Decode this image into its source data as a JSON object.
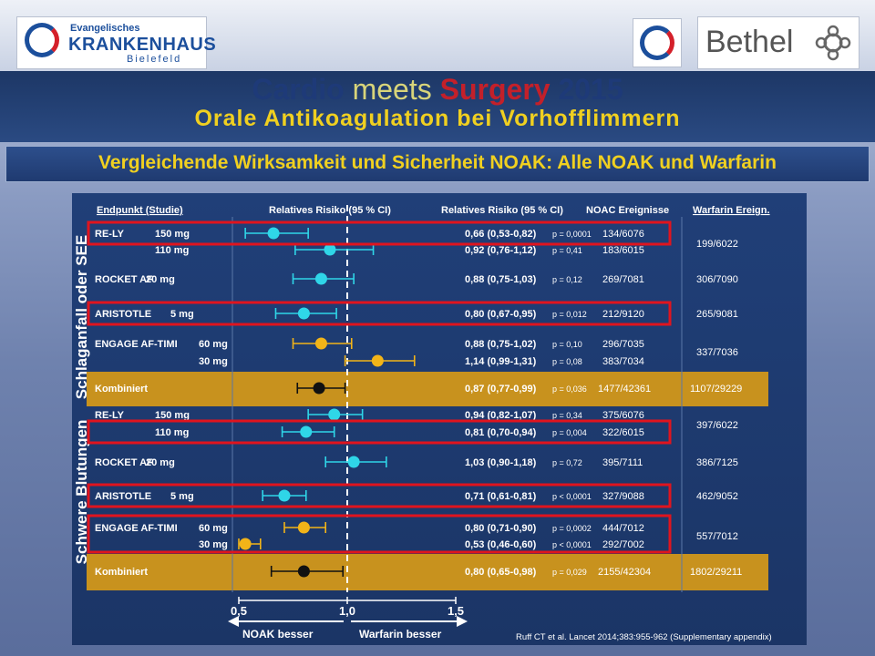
{
  "logos": {
    "left_line1": "Evangelisches",
    "left_line2": "KRANKENHAUS",
    "left_line3": "Bielefeld",
    "right_text": "Bethel"
  },
  "titles": {
    "cardio": "Cardio",
    "meets": "meets",
    "surgery": "Surgery",
    "year": "2015",
    "subtitle": "Orale Antikoagulation  bei Vorhofflimmern",
    "slide_title": "Vergleichende Wirksamkeit und Sicherheit NOAK: Alle NOAK und Warfarin"
  },
  "colors": {
    "panel": "#1f3c72",
    "orange_band": "#c8921e",
    "cyan": "#2fd6e8",
    "orange": "#f2b418",
    "highlight": "#e0141e"
  },
  "chart_data": {
    "type": "forest",
    "headers": {
      "endpoint": "Endpunkt (Studie)",
      "rr_plot": "Relatives Risiko (95 % CI)",
      "rr_text": "Relatives Risiko (95 % CI)",
      "noac": "NOAC Ereignisse",
      "warfarin": "Warfarin Ereign."
    },
    "groups": [
      {
        "label": "Schlaganfall oder SEE"
      },
      {
        "label": "Schwere Blutungen"
      }
    ],
    "rows": [
      {
        "study": "RE-LY",
        "dose": "150 mg",
        "rr": 0.66,
        "lo": 0.53,
        "hi": 0.82,
        "text": "0,66 (0,53-0,82)",
        "p": "p = 0,0001",
        "noac": "134/6076",
        "warf": "199/6022",
        "color": "cyan",
        "group": 0
      },
      {
        "study": "",
        "dose": "110 mg",
        "rr": 0.92,
        "lo": 0.76,
        "hi": 1.12,
        "text": "0,92 (0,76-1,12)",
        "p": "p = 0,41",
        "noac": "183/6015",
        "warf": "",
        "color": "cyan",
        "group": 0
      },
      {
        "study": "ROCKET AF",
        "dose": "20 mg",
        "rr": 0.88,
        "lo": 0.75,
        "hi": 1.03,
        "text": "0,88 (0,75-1,03)",
        "p": "p = 0,12",
        "noac": "269/7081",
        "warf": "306/7090",
        "color": "cyan",
        "group": 0
      },
      {
        "study": "ARISTOTLE",
        "dose": "5 mg",
        "rr": 0.8,
        "lo": 0.67,
        "hi": 0.95,
        "text": "0,80 (0,67-0,95)",
        "p": "p = 0,012",
        "noac": "212/9120",
        "warf": "265/9081",
        "color": "cyan",
        "group": 0
      },
      {
        "study": "ENGAGE AF-TIMI",
        "dose": "60 mg",
        "rr": 0.88,
        "lo": 0.75,
        "hi": 1.02,
        "text": "0,88 (0,75-1,02)",
        "p": "p = 0,10",
        "noac": "296/7035",
        "warf": "337/7036",
        "color": "orange",
        "group": 0
      },
      {
        "study": "",
        "dose": "30 mg",
        "rr": 1.14,
        "lo": 0.99,
        "hi": 1.31,
        "text": "1,14 (0,99-1,31)",
        "p": "p = 0,08",
        "noac": "383/7034",
        "warf": "",
        "color": "orange",
        "group": 0
      },
      {
        "study": "Kombiniert",
        "dose": "",
        "rr": 0.87,
        "lo": 0.77,
        "hi": 0.99,
        "text": "0,87 (0,77-0,99)",
        "p": "p = 0,036",
        "noac": "1477/42361",
        "warf": "1107/29229",
        "color": "black",
        "group": 0,
        "combined": true
      },
      {
        "study": "RE-LY",
        "dose": "150 mg",
        "rr": 0.94,
        "lo": 0.82,
        "hi": 1.07,
        "text": "0,94 (0,82-1,07)",
        "p": "p = 0,34",
        "noac": "375/6076",
        "warf": "397/6022",
        "color": "cyan",
        "group": 1
      },
      {
        "study": "",
        "dose": "110 mg",
        "rr": 0.81,
        "lo": 0.7,
        "hi": 0.94,
        "text": "0,81 (0,70-0,94)",
        "p": "p = 0,004",
        "noac": "322/6015",
        "warf": "",
        "color": "cyan",
        "group": 1
      },
      {
        "study": "ROCKET AF",
        "dose": "20 mg",
        "rr": 1.03,
        "lo": 0.9,
        "hi": 1.18,
        "text": "1,03 (0,90-1,18)",
        "p": "p = 0,72",
        "noac": "395/7111",
        "warf": "386/7125",
        "color": "cyan",
        "group": 1
      },
      {
        "study": "ARISTOTLE",
        "dose": "5 mg",
        "rr": 0.71,
        "lo": 0.61,
        "hi": 0.81,
        "text": "0,71 (0,61-0,81)",
        "p": "p < 0,0001",
        "noac": "327/9088",
        "warf": "462/9052",
        "color": "cyan",
        "group": 1
      },
      {
        "study": "ENGAGE AF-TIMI",
        "dose": "60 mg",
        "rr": 0.8,
        "lo": 0.71,
        "hi": 0.9,
        "text": "0,80 (0,71-0,90)",
        "p": "p = 0,0002",
        "noac": "444/7012",
        "warf": "557/7012",
        "color": "orange",
        "group": 1
      },
      {
        "study": "",
        "dose": "30 mg",
        "rr": 0.53,
        "lo": 0.46,
        "hi": 0.6,
        "text": "0,53 (0,46-0,60)",
        "p": "p < 0,0001",
        "noac": "292/7002",
        "warf": "",
        "color": "orange",
        "group": 1
      },
      {
        "study": "Kombiniert",
        "dose": "",
        "rr": 0.8,
        "lo": 0.65,
        "hi": 0.98,
        "text": "0,80 (0,65-0,98)",
        "p": "p = 0,029",
        "noac": "2155/42304",
        "warf": "1802/29211",
        "color": "black",
        "group": 1,
        "combined": true
      }
    ],
    "xaxis": {
      "ticks": [
        "0,5",
        "1,0",
        "1,5"
      ],
      "tick_values": [
        0.5,
        1.0,
        1.5
      ],
      "range": [
        0.5,
        1.5
      ],
      "ref_line": 1.0
    },
    "arrows": {
      "left": "NOAK besser",
      "right": "Warfarin besser"
    },
    "citation": "Ruff CT et al. Lancet 2014;383:955-962 (Supplementary appendix)",
    "highlighted_rows": [
      0,
      3,
      8,
      10,
      11
    ]
  }
}
